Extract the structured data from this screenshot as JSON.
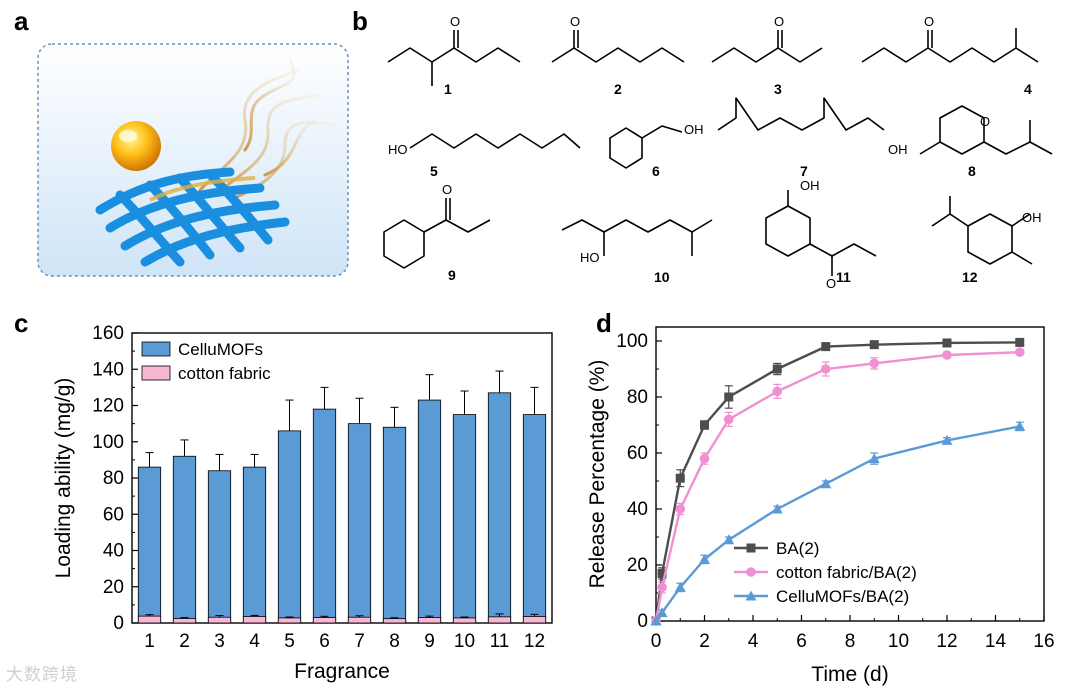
{
  "panels": {
    "a": {
      "letter": "a"
    },
    "b": {
      "letter": "b",
      "compounds": [
        "1",
        "2",
        "3",
        "4",
        "5",
        "6",
        "7",
        "8",
        "9",
        "10",
        "11",
        "12"
      ],
      "atom_labels": {
        "O": "O",
        "OH": "OH",
        "HO": "HO"
      }
    },
    "c": {
      "letter": "c"
    },
    "d": {
      "letter": "d"
    }
  },
  "watermark": "大数跨境",
  "chart_data": [
    {
      "type": "bar",
      "panel": "c",
      "xlabel": "Fragrance",
      "ylabel": "Loading ability (mg/g)",
      "categories": [
        "1",
        "2",
        "3",
        "4",
        "5",
        "6",
        "7",
        "8",
        "9",
        "10",
        "11",
        "12"
      ],
      "ylim": [
        0,
        160
      ],
      "yticks": [
        0,
        20,
        40,
        60,
        80,
        100,
        120,
        140,
        160
      ],
      "legend_position": "top-left",
      "grid": false,
      "series": [
        {
          "name": "CelluMOFs",
          "color": "#5b9bd5",
          "values": [
            86,
            92,
            84,
            86,
            106,
            118,
            110,
            108,
            123,
            115,
            127,
            115
          ],
          "errors": [
            8,
            9,
            9,
            7,
            17,
            12,
            14,
            11,
            14,
            13,
            12,
            15
          ]
        },
        {
          "name": "cotton fabric",
          "color": "#f7b6d2",
          "values": [
            3.8,
            2.5,
            3.2,
            3.6,
            2.8,
            3.0,
            3.2,
            2.4,
            3.0,
            2.8,
            3.4,
            3.6
          ],
          "errors": [
            0.8,
            0.5,
            0.9,
            0.6,
            0.5,
            0.7,
            0.8,
            0.5,
            0.8,
            0.5,
            1.6,
            1.2
          ]
        }
      ]
    },
    {
      "type": "line",
      "panel": "d",
      "xlabel": "Time (d)",
      "ylabel": "Release Percentage (%)",
      "xlim": [
        0,
        16
      ],
      "ylim": [
        0,
        105
      ],
      "xticks": [
        0,
        2,
        4,
        6,
        8,
        10,
        12,
        14,
        16
      ],
      "yticks": [
        0,
        20,
        40,
        60,
        80,
        100
      ],
      "legend_position": "bottom-right",
      "grid": false,
      "series": [
        {
          "name": "BA(2)",
          "color": "#4d4d4d",
          "marker": "square",
          "x": [
            0,
            0.25,
            1,
            2,
            3,
            5,
            7,
            9,
            12,
            15
          ],
          "y": [
            0,
            17,
            51,
            70,
            80,
            90,
            98,
            98.7,
            99.3,
            99.5
          ],
          "errors": [
            0,
            2,
            3,
            1.5,
            4,
            2,
            1.2,
            0.8,
            0.5,
            0.5
          ]
        },
        {
          "name": "cotton fabric/BA(2)",
          "color": "#f08fd1",
          "marker": "circle",
          "x": [
            0,
            0.25,
            1,
            2,
            3,
            5,
            7,
            9,
            12,
            15
          ],
          "y": [
            0,
            12,
            40,
            58,
            72,
            82,
            90,
            92,
            95,
            96
          ],
          "errors": [
            0,
            2,
            2,
            2,
            2.5,
            2.5,
            2.5,
            2,
            1,
            0.8
          ]
        },
        {
          "name": "CelluMOFs/BA(2)",
          "color": "#5b9bd5",
          "marker": "triangle",
          "x": [
            0,
            0.25,
            1,
            2,
            3,
            5,
            7,
            9,
            12,
            15
          ],
          "y": [
            0,
            3,
            12,
            22,
            29,
            40,
            49,
            58,
            64.5,
            69.5
          ],
          "errors": [
            0,
            1,
            1.5,
            1.5,
            1,
            1,
            1,
            2,
            1,
            1.5
          ]
        }
      ]
    }
  ]
}
